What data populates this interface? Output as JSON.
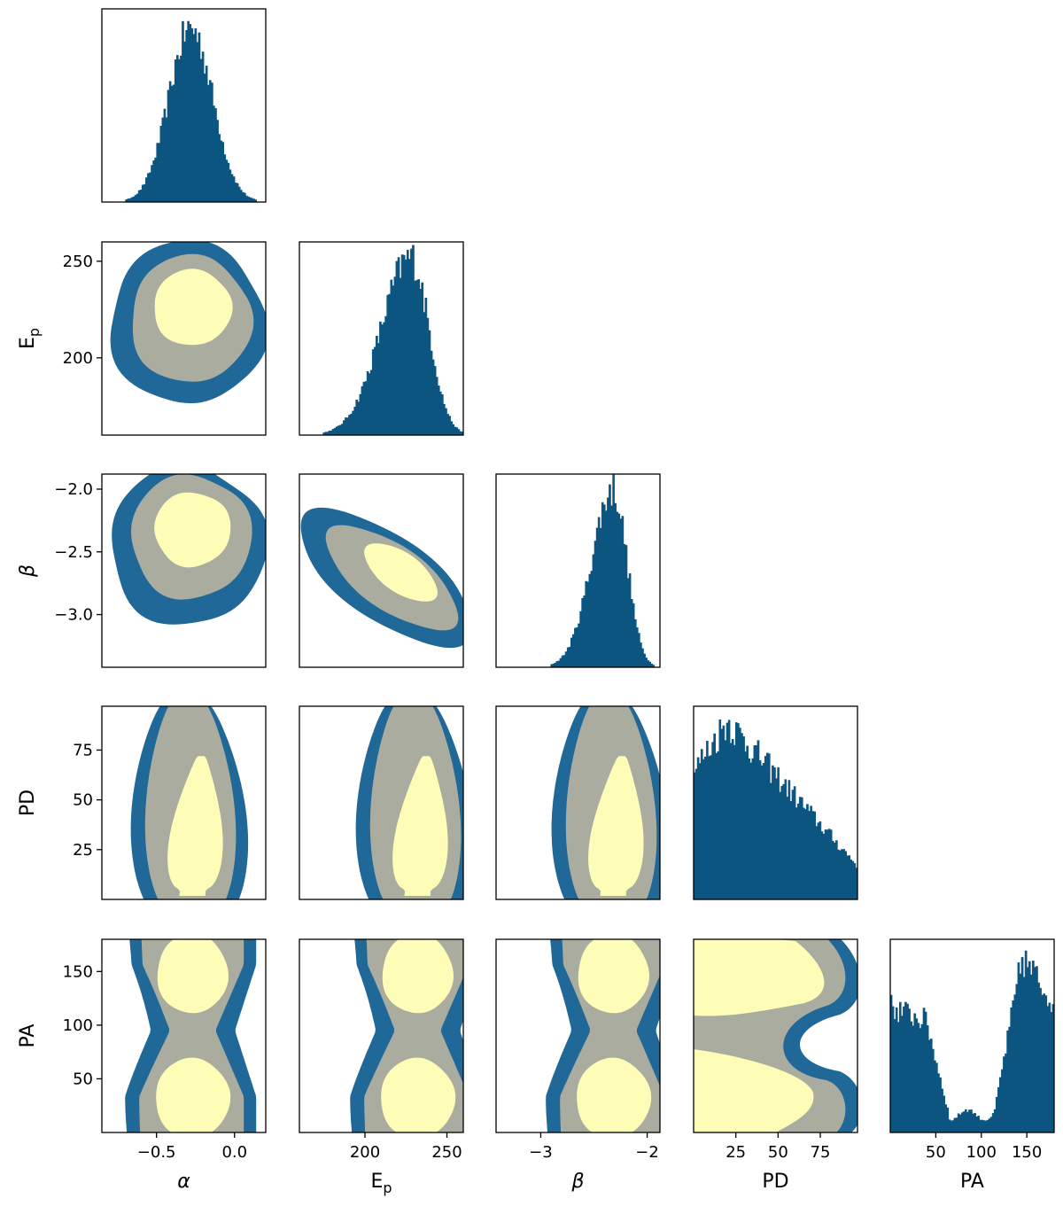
{
  "colors": {
    "hist": "#0c5580",
    "level_outer": "#1f6898",
    "level_middle": "#a9ac9f",
    "level_inner": "#fdfdb8",
    "axes": "#000000"
  },
  "chart_data": {
    "type": "corner",
    "title": "",
    "parameters": [
      {
        "key": "alpha",
        "label": "α",
        "range": [
          -0.85,
          0.2
        ],
        "ticks": [
          -0.5,
          0.0
        ],
        "tick_labels": [
          "−0.5",
          "0.0"
        ]
      },
      {
        "key": "Ep",
        "label": "Ep",
        "label_main": "E",
        "label_sub": "p",
        "range": [
          160,
          260
        ],
        "ticks": [
          200,
          250
        ],
        "tick_labels": [
          "200",
          "250"
        ]
      },
      {
        "key": "beta",
        "label": "β",
        "range": [
          -3.42,
          -1.88
        ],
        "ticks": [
          -3.0,
          -2.5,
          -2.0
        ],
        "tick_labels": [
          "−3.0",
          "−2.5",
          "−2.0"
        ],
        "x_ticks": [
          -3.0,
          -2.0
        ],
        "x_tick_labels": [
          "−3",
          "−2"
        ]
      },
      {
        "key": "PD",
        "label": "PD",
        "range": [
          0,
          97
        ],
        "ticks": [
          25,
          50,
          75
        ],
        "tick_labels": [
          "25",
          "50",
          "75"
        ]
      },
      {
        "key": "PA",
        "label": "PA",
        "range": [
          0,
          180
        ],
        "ticks": [
          50,
          100,
          150
        ],
        "tick_labels": [
          "50",
          "100",
          "150"
        ]
      }
    ],
    "histograms": [
      {
        "param": "alpha",
        "center": -0.28,
        "sd": 0.14,
        "note_shape": "gaussian"
      },
      {
        "param": "Ep",
        "center": 228,
        "sd": 18,
        "skew": "left"
      },
      {
        "param": "beta",
        "center": -2.32,
        "sd": 0.2,
        "skew": "left"
      },
      {
        "param": "PD",
        "peak": 20,
        "shape": "decreasing"
      },
      {
        "param": "PA",
        "shape": "bimodal",
        "peaks": [
          15,
          150
        ],
        "trough": 90
      }
    ],
    "contours": [
      {
        "row": "Ep",
        "col": "alpha",
        "levels": [
          {
            "cx": -0.3,
            "cy": 220,
            "rx": 0.46,
            "ry": 45
          },
          {
            "cx": -0.28,
            "cy": 222,
            "rx": 0.35,
            "ry": 34
          },
          {
            "cx": -0.27,
            "cy": 226,
            "rx": 0.22,
            "ry": 20
          }
        ]
      },
      {
        "row": "beta",
        "col": "alpha",
        "levels": [
          {
            "cx": -0.3,
            "cy": -2.45,
            "rx": 0.46,
            "ry": 0.58
          },
          {
            "cx": -0.28,
            "cy": -2.37,
            "rx": 0.35,
            "ry": 0.43
          },
          {
            "cx": -0.27,
            "cy": -2.32,
            "rx": 0.21,
            "ry": 0.26
          }
        ]
      },
      {
        "row": "beta",
        "col": "Ep",
        "correlated": true
      },
      {
        "row": "PD",
        "col": "alpha",
        "vertical": true
      },
      {
        "row": "PD",
        "col": "Ep",
        "vertical": true
      },
      {
        "row": "PD",
        "col": "beta",
        "vertical": true
      },
      {
        "row": "PA",
        "col": "alpha",
        "bimodal": true
      },
      {
        "row": "PA",
        "col": "Ep",
        "bimodal": true
      },
      {
        "row": "PA",
        "col": "beta",
        "bimodal": true
      },
      {
        "row": "PA",
        "col": "PD",
        "horseshoe": true
      }
    ]
  }
}
